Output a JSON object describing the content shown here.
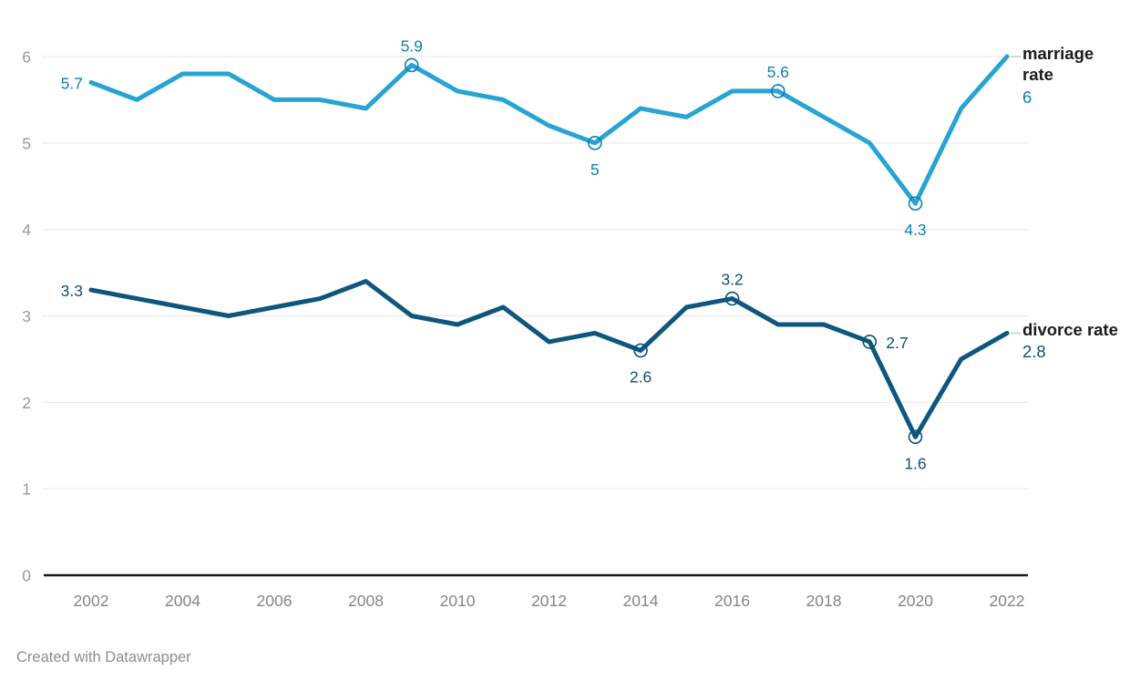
{
  "chart_data": {
    "type": "line",
    "title": "",
    "xlabel": "",
    "ylabel": "",
    "x": [
      2002,
      2003,
      2004,
      2005,
      2006,
      2007,
      2008,
      2009,
      2010,
      2011,
      2012,
      2013,
      2014,
      2015,
      2016,
      2017,
      2018,
      2019,
      2020,
      2021,
      2022
    ],
    "xticks": [
      2002,
      2004,
      2006,
      2008,
      2010,
      2012,
      2014,
      2016,
      2018,
      2020,
      2022
    ],
    "yticks": [
      0,
      1,
      2,
      3,
      4,
      5,
      6
    ],
    "ylim": [
      0,
      6
    ],
    "xlim": [
      2002,
      2022
    ],
    "grid": true,
    "legend_position": "right",
    "series": [
      {
        "name": "marriage rate",
        "values": [
          5.7,
          5.5,
          5.8,
          5.8,
          5.5,
          5.5,
          5.4,
          5.9,
          5.6,
          5.5,
          5.2,
          5.0,
          5.4,
          5.3,
          5.6,
          5.6,
          5.3,
          5.0,
          4.3,
          5.4,
          6.0
        ],
        "line_color": "#27a4d4",
        "label_color": "#0e7fb1",
        "marked_years": [
          2009,
          2013,
          2017,
          2020
        ],
        "point_labels": [
          {
            "year": 2002,
            "text": "5.7",
            "position": "left"
          },
          {
            "year": 2009,
            "text": "5.9",
            "position": "above"
          },
          {
            "year": 2013,
            "text": "5",
            "position": "below"
          },
          {
            "year": 2017,
            "text": "5.6",
            "position": "above"
          },
          {
            "year": 2020,
            "text": "4.3",
            "position": "below"
          }
        ],
        "legend_title": "marriage rate",
        "legend_value": "6"
      },
      {
        "name": "divorce rate",
        "values": [
          3.3,
          3.2,
          3.1,
          3.0,
          3.1,
          3.2,
          3.4,
          3.0,
          2.9,
          3.1,
          2.7,
          2.8,
          2.6,
          3.1,
          3.2,
          2.9,
          2.9,
          2.7,
          1.6,
          2.5,
          2.8
        ],
        "line_color": "#0f567f",
        "label_color": "#0b5176",
        "marked_years": [
          2014,
          2016,
          2019,
          2020
        ],
        "point_labels": [
          {
            "year": 2002,
            "text": "3.3",
            "position": "left"
          },
          {
            "year": 2014,
            "text": "2.6",
            "position": "below"
          },
          {
            "year": 2016,
            "text": "3.2",
            "position": "above"
          },
          {
            "year": 2019,
            "text": "2.7",
            "position": "right"
          },
          {
            "year": 2020,
            "text": "1.6",
            "position": "below"
          }
        ],
        "legend_title": "divorce rate",
        "legend_value": "2.8"
      }
    ]
  },
  "axis_style": {
    "grid_color": "#e8e8e8",
    "baseline_color": "#1a1a1a",
    "ytick_color": "#9a9a9a",
    "xtick_color": "#858585",
    "connector_color": "#c9c9c9"
  },
  "footer": {
    "credit": "Created with Datawrapper"
  }
}
